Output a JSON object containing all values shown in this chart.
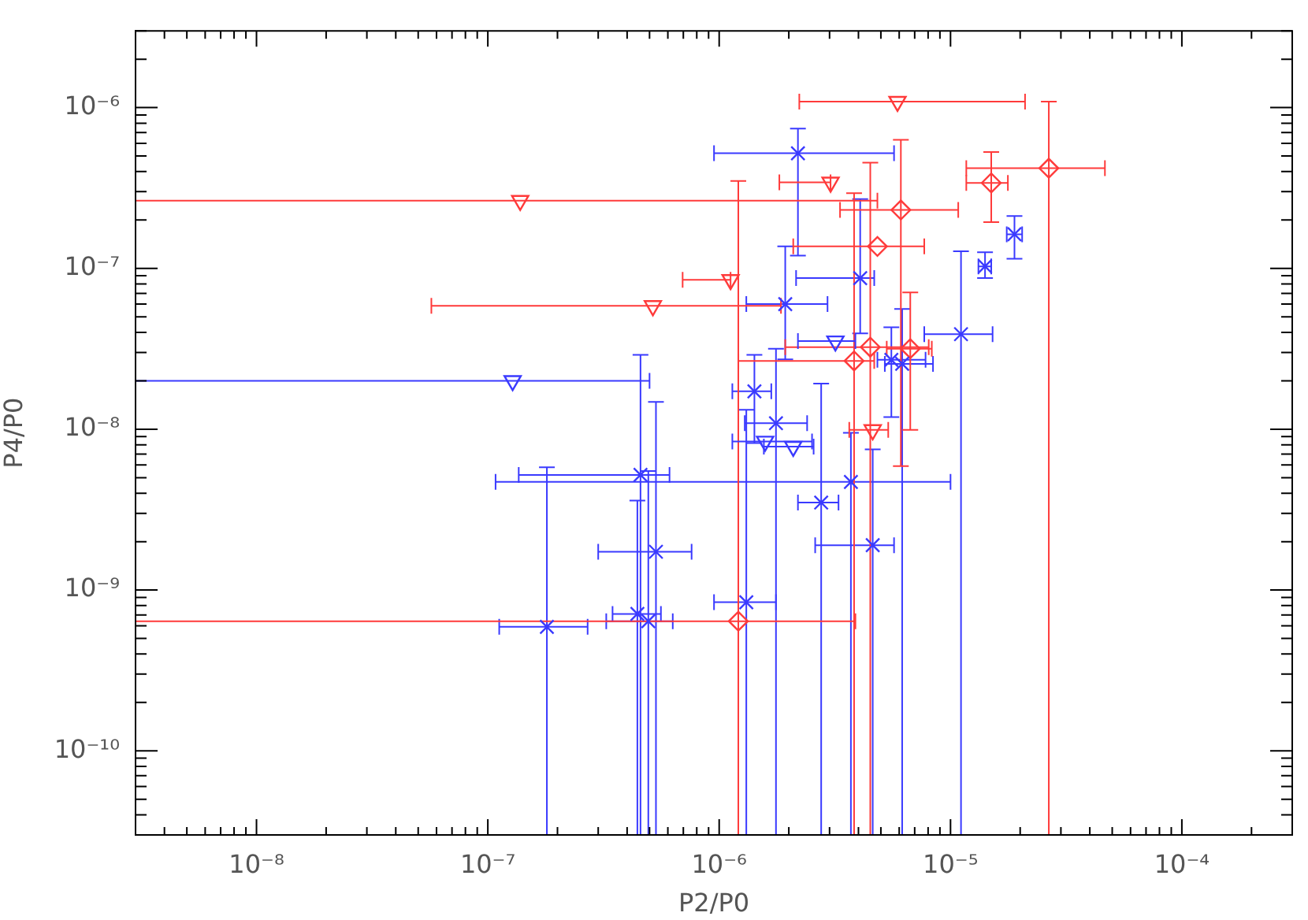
{
  "chart_data": {
    "type": "scatter",
    "xlabel": "P2/P0",
    "ylabel": "P4/P0",
    "log": "xy",
    "grid": false,
    "legend": false,
    "xlim": [
      3e-09,
      0.0003
    ],
    "ylim": [
      3e-11,
      3e-06
    ],
    "xticks": [
      {
        "value": 3e-09,
        "label": null
      },
      {
        "value": 4e-09,
        "label": null
      },
      {
        "value": 5e-09,
        "label": null
      },
      {
        "value": 6e-09,
        "label": null
      },
      {
        "value": 7e-09,
        "label": null
      },
      {
        "value": 8e-09,
        "label": null
      },
      {
        "value": 9e-09,
        "label": null
      },
      {
        "value": 1e-08,
        "label": "10⁻⁸"
      },
      {
        "value": 2e-08,
        "label": null
      },
      {
        "value": 3e-08,
        "label": null
      },
      {
        "value": 4e-08,
        "label": null
      },
      {
        "value": 5e-08,
        "label": null
      },
      {
        "value": 6e-08,
        "label": null
      },
      {
        "value": 7e-08,
        "label": null
      },
      {
        "value": 8e-08,
        "label": null
      },
      {
        "value": 9e-08,
        "label": null
      },
      {
        "value": 1e-07,
        "label": "10⁻⁷"
      },
      {
        "value": 2e-07,
        "label": null
      },
      {
        "value": 3e-07,
        "label": null
      },
      {
        "value": 4e-07,
        "label": null
      },
      {
        "value": 5e-07,
        "label": null
      },
      {
        "value": 6e-07,
        "label": null
      },
      {
        "value": 7e-07,
        "label": null
      },
      {
        "value": 8e-07,
        "label": null
      },
      {
        "value": 9e-07,
        "label": null
      },
      {
        "value": 1e-06,
        "label": "10⁻⁶"
      },
      {
        "value": 2e-06,
        "label": null
      },
      {
        "value": 3e-06,
        "label": null
      },
      {
        "value": 4e-06,
        "label": null
      },
      {
        "value": 5e-06,
        "label": null
      },
      {
        "value": 6e-06,
        "label": null
      },
      {
        "value": 7e-06,
        "label": null
      },
      {
        "value": 8e-06,
        "label": null
      },
      {
        "value": 9e-06,
        "label": null
      },
      {
        "value": 1e-05,
        "label": "10⁻⁵"
      },
      {
        "value": 2e-05,
        "label": null
      },
      {
        "value": 3e-05,
        "label": null
      },
      {
        "value": 4e-05,
        "label": null
      },
      {
        "value": 5e-05,
        "label": null
      },
      {
        "value": 6e-05,
        "label": null
      },
      {
        "value": 7e-05,
        "label": null
      },
      {
        "value": 8e-05,
        "label": null
      },
      {
        "value": 9e-05,
        "label": null
      },
      {
        "value": 0.0001,
        "label": "10⁻⁴"
      },
      {
        "value": 0.0002,
        "label": null
      },
      {
        "value": 0.0003,
        "label": null
      }
    ],
    "yticks": [
      {
        "value": 3e-11,
        "label": null
      },
      {
        "value": 4e-11,
        "label": null
      },
      {
        "value": 5e-11,
        "label": null
      },
      {
        "value": 6e-11,
        "label": null
      },
      {
        "value": 7e-11,
        "label": null
      },
      {
        "value": 8e-11,
        "label": null
      },
      {
        "value": 9e-11,
        "label": null
      },
      {
        "value": 1e-10,
        "label": "10⁻¹⁰"
      },
      {
        "value": 2e-10,
        "label": null
      },
      {
        "value": 3e-10,
        "label": null
      },
      {
        "value": 4e-10,
        "label": null
      },
      {
        "value": 5e-10,
        "label": null
      },
      {
        "value": 6e-10,
        "label": null
      },
      {
        "value": 7e-10,
        "label": null
      },
      {
        "value": 8e-10,
        "label": null
      },
      {
        "value": 9e-10,
        "label": null
      },
      {
        "value": 1e-09,
        "label": "10⁻⁹"
      },
      {
        "value": 2e-09,
        "label": null
      },
      {
        "value": 3e-09,
        "label": null
      },
      {
        "value": 4e-09,
        "label": null
      },
      {
        "value": 5e-09,
        "label": null
      },
      {
        "value": 6e-09,
        "label": null
      },
      {
        "value": 7e-09,
        "label": null
      },
      {
        "value": 8e-09,
        "label": null
      },
      {
        "value": 9e-09,
        "label": null
      },
      {
        "value": 1e-08,
        "label": "10⁻⁸"
      },
      {
        "value": 2e-08,
        "label": null
      },
      {
        "value": 3e-08,
        "label": null
      },
      {
        "value": 4e-08,
        "label": null
      },
      {
        "value": 5e-08,
        "label": null
      },
      {
        "value": 6e-08,
        "label": null
      },
      {
        "value": 7e-08,
        "label": null
      },
      {
        "value": 8e-08,
        "label": null
      },
      {
        "value": 9e-08,
        "label": null
      },
      {
        "value": 1e-07,
        "label": "10⁻⁷"
      },
      {
        "value": 2e-07,
        "label": null
      },
      {
        "value": 3e-07,
        "label": null
      },
      {
        "value": 4e-07,
        "label": null
      },
      {
        "value": 5e-07,
        "label": null
      },
      {
        "value": 6e-07,
        "label": null
      },
      {
        "value": 7e-07,
        "label": null
      },
      {
        "value": 8e-07,
        "label": null
      },
      {
        "value": 9e-07,
        "label": null
      },
      {
        "value": 1e-06,
        "label": "10⁻⁶"
      },
      {
        "value": 2e-06,
        "label": null
      },
      {
        "value": 3e-06,
        "label": null
      }
    ],
    "series": [
      {
        "color": "#3a3aff",
        "marker": "cross",
        "x": [
          2.19e-06,
          1.93e-06,
          4.07e-06,
          1.11e-05,
          1.41e-05,
          1.89e-05,
          5.55e-06,
          6.18e-06,
          1.42e-06,
          1.76e-06,
          3.71e-06,
          2.76e-06,
          4.61e-06,
          1.31e-06,
          1.8e-07,
          4.57e-07,
          5.33e-07,
          4.43e-07,
          4.94e-07
        ],
        "values": [
          5.2e-07,
          6e-08,
          8.7e-08,
          3.9e-08,
          1.03e-07,
          1.63e-07,
          2.7e-08,
          2.55e-08,
          1.72e-08,
          1.09e-08,
          4.7e-09,
          3.5e-09,
          1.9e-09,
          8.4e-10,
          5.9e-10,
          5.2e-09,
          1.73e-09,
          7.1e-10,
          6.4e-10
        ],
        "xerrors": [
          [
            9.5e-07,
            5.7e-06
          ],
          [
            1.31e-06,
            2.94e-06
          ],
          [
            2.15e-06,
            4.68e-06
          ],
          [
            7.7e-06,
            1.52e-05
          ],
          [
            1.32e-05,
            1.5e-05
          ],
          [
            1.75e-05,
            2.04e-05
          ],
          [
            4.83e-06,
            7.8e-06
          ],
          [
            5.2e-06,
            8.4e-06
          ],
          [
            1.14e-06,
            1.68e-06
          ],
          [
            1.29e-06,
            2.4e-06
          ],
          [
            1.08e-07,
            1e-05
          ],
          [
            2.19e-06,
            3.28e-06
          ],
          [
            2.6e-06,
            5.7e-06
          ],
          [
            9.5e-07,
            1.76e-06
          ],
          [
            1.12e-07,
            2.7e-07
          ],
          [
            1.36e-07,
            6.1e-07
          ],
          [
            3e-07,
            7.6e-07
          ],
          [
            3.46e-07,
            5.6e-07
          ],
          [
            3.25e-07,
            6.3e-07
          ]
        ],
        "errors": [
          [
            1.2e-07,
            7.4e-07
          ],
          [
            2.72e-08,
            1.37e-07
          ],
          [
            3.95e-08,
            2.7e-07
          ],
          [
            3e-11,
            1.28e-07
          ],
          [
            8.7e-08,
            1.26e-07
          ],
          [
            1.15e-07,
            2.12e-07
          ],
          [
            1.19e-08,
            4.3e-08
          ],
          [
            3e-11,
            5.6e-08
          ],
          [
            8.2e-09,
            2.9e-08
          ],
          [
            3e-11,
            3.17e-08
          ],
          [
            3e-11,
            9.5e-09
          ],
          [
            3e-11,
            1.92e-08
          ],
          [
            3e-11,
            7.5e-09
          ],
          [
            3e-11,
            1.32e-08
          ],
          [
            3e-11,
            5.8e-09
          ],
          [
            3e-11,
            2.9e-08
          ],
          [
            3e-11,
            1.48e-08
          ],
          [
            3e-11,
            3.6e-09
          ],
          [
            3e-11,
            5.5e-09
          ]
        ]
      },
      {
        "color": "#ff3a3a",
        "marker": "diamond",
        "x": [
          2.66e-05,
          1.5e-05,
          6.1e-06,
          4.83e-06,
          6.7e-06,
          4.5e-06,
          3.83e-06,
          1.21e-06
        ],
        "values": [
          4.2e-07,
          3.4e-07,
          2.31e-07,
          1.37e-07,
          3.17e-08,
          3.24e-08,
          2.66e-08,
          6.4e-10
        ],
        "xerrors": [
          [
            1.17e-05,
            4.65e-05
          ],
          [
            1.17e-05,
            1.77e-05
          ],
          [
            3.33e-06,
            1.08e-05
          ],
          [
            2.09e-06,
            7.7e-06
          ],
          [
            5.3e-06,
            8.3e-06
          ],
          [
            1.93e-06,
            8.05e-06
          ],
          [
            1.21e-06,
            4.68e-06
          ],
          [
            3e-09,
            3.88e-06
          ]
        ],
        "errors": [
          [
            3e-11,
            1.09e-06
          ],
          [
            1.94e-07,
            5.3e-07
          ],
          [
            5.9e-09,
            6.3e-07
          ],
          null,
          [
            9.9e-09,
            7.1e-08
          ],
          [
            3e-11,
            4.55e-07
          ],
          [
            3e-11,
            2.94e-07
          ],
          [
            3e-11,
            3.5e-07
          ]
        ]
      },
      {
        "color": "#ff3a3a",
        "marker": "triangle",
        "x": [
          5.9e-06,
          1.38e-07,
          5.17e-07,
          1.12e-06,
          3.03e-06,
          4.61e-06
        ],
        "values": [
          1.09e-06,
          2.64e-07,
          5.85e-08,
          8.5e-08,
          3.43e-07,
          9.9e-09
        ],
        "xerrors": [
          [
            2.22e-06,
            2.1e-05
          ],
          [
            3e-09,
            4.83e-06
          ],
          [
            5.7e-08,
            1.85e-06
          ],
          [
            6.95e-07,
            1.12e-06
          ],
          [
            1.82e-06,
            3.03e-06
          ],
          [
            3.65e-06,
            5.38e-06
          ]
        ]
      },
      {
        "color": "#3a3aff",
        "marker": "triangle",
        "x": [
          1.28e-07,
          1.58e-06,
          2.09e-06,
          3.18e-06
        ],
        "values": [
          2e-08,
          8.4e-09,
          7.8e-09,
          3.53e-08
        ],
        "xerrors": [
          [
            3e-09,
            5e-07
          ],
          [
            1.14e-06,
            2.52e-06
          ],
          [
            1.56e-06,
            2.56e-06
          ],
          [
            2.19e-06,
            3.88e-06
          ]
        ]
      }
    ]
  }
}
